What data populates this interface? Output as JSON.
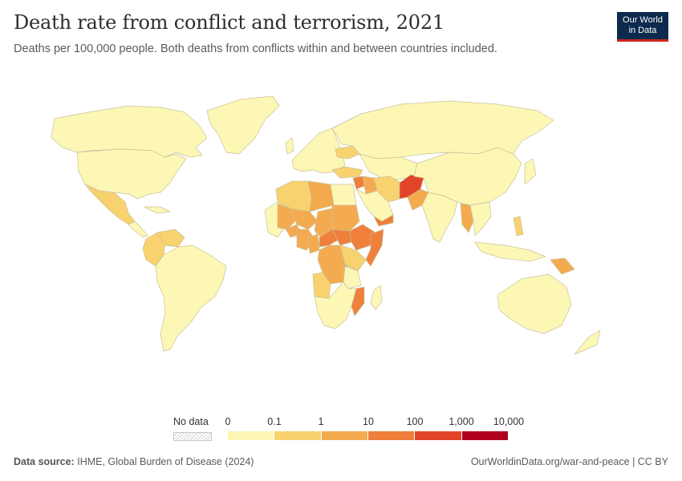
{
  "header": {
    "title": "Death rate from conflict and terrorism, 2021",
    "subtitle": "Deaths per 100,000 people. Both deaths from conflicts within and between countries included."
  },
  "logo": {
    "line1": "Our World",
    "line2": "in Data"
  },
  "legend": {
    "no_data_label": "No data",
    "ticks": [
      "0",
      "0.1",
      "1",
      "10",
      "100",
      "1,000",
      "10,000"
    ],
    "colors": [
      "#fdf7b6",
      "#f8d26e",
      "#f4ab4f",
      "#ef7f3a",
      "#e14428",
      "#b1001e"
    ]
  },
  "map_colors": {
    "ocean": "#ffffff",
    "country_border": "#c9c19a",
    "level_0": "#fdf7b6",
    "level_1": "#f8d26e",
    "level_2": "#f4ab4f",
    "level_3": "#ef7f3a",
    "level_4": "#e14428"
  },
  "map_regions": {
    "afghanistan": "level_4",
    "mali": "level_2",
    "niger": "level_2",
    "nigeria": "level_2",
    "cameroon": "level_2",
    "chad": "level_2",
    "sudan": "level_2",
    "dr_congo": "level_2",
    "mozambique": "level_3",
    "ethiopia": "level_3",
    "somalia": "level_3",
    "south_sudan": "level_3",
    "car": "level_3",
    "yemen": "level_3",
    "syria": "level_3",
    "iraq": "level_2",
    "pakistan": "level_2",
    "myanmar": "level_2",
    "burkina_faso": "level_2",
    "libya": "level_2",
    "burundi": "level_2",
    "colombia": "level_1",
    "venezuela": "level_1",
    "mexico": "level_1",
    "ukraine": "level_1",
    "iran": "level_1",
    "turkey": "level_1",
    "philippines": "level_1",
    "papua_new_guinea": "level_2",
    "kenya": "level_1",
    "uganda": "level_1",
    "angola": "level_1",
    "algeria": "level_1"
  },
  "footer": {
    "source_label": "Data source:",
    "source_text": "IHME, Global Burden of Disease (2024)",
    "url_text": "OurWorldinData.org/war-and-peace | CC BY"
  }
}
